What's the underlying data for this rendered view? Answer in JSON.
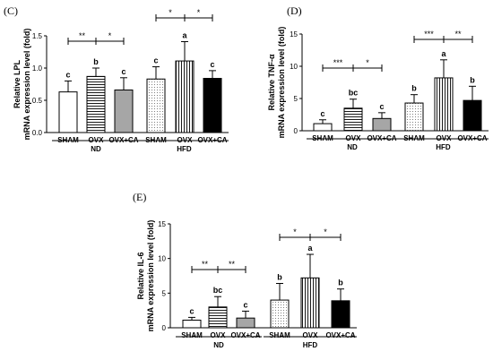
{
  "chart_data": [
    {
      "type": "bar",
      "panel": "(C)",
      "ylabel_lines": [
        "Relative LPL",
        "mRNA expression level (fold)"
      ],
      "ylim": [
        0,
        1.5
      ],
      "yticks": [
        "0.0",
        "0.5",
        "1.0",
        "1.5"
      ],
      "categories": [
        "SHAM",
        "OVX",
        "OVX+CA",
        "SHAM",
        "OVX",
        "OVX+CA"
      ],
      "groups": [
        {
          "label": "ND",
          "indices": [
            0,
            1,
            2
          ]
        },
        {
          "label": "HFD",
          "indices": [
            3,
            4,
            5
          ]
        }
      ],
      "values": [
        0.63,
        0.87,
        0.66,
        0.83,
        1.11,
        0.84
      ],
      "errors": [
        0.17,
        0.13,
        0.19,
        0.19,
        0.3,
        0.12
      ],
      "letters": [
        "c",
        "b",
        "c",
        "c",
        "a",
        "c"
      ],
      "fills": [
        "blank",
        "hstripes",
        "grey",
        "dots",
        "vstripes",
        "black"
      ],
      "significance": [
        {
          "from": 0,
          "to": 1,
          "label": "**"
        },
        {
          "from": 1,
          "to": 2,
          "label": "*"
        },
        {
          "from": 3,
          "to": 4,
          "label": "*"
        },
        {
          "from": 4,
          "to": 5,
          "label": "*"
        }
      ]
    },
    {
      "type": "bar",
      "panel": "(D)",
      "ylabel_lines": [
        "Relative TNF-α",
        "mRNA expression level (fold)"
      ],
      "ylim": [
        0,
        15
      ],
      "yticks": [
        "0",
        "5",
        "10",
        "15"
      ],
      "categories": [
        "SHAM",
        "OVX",
        "OVX+CA",
        "SHAM",
        "OVX",
        "OVX+CA"
      ],
      "groups": [
        {
          "label": "ND",
          "indices": [
            0,
            1,
            2
          ]
        },
        {
          "label": "HFD",
          "indices": [
            3,
            4,
            5
          ]
        }
      ],
      "values": [
        1.1,
        3.5,
        1.9,
        4.3,
        8.2,
        4.7
      ],
      "errors": [
        0.6,
        1.4,
        0.9,
        1.3,
        2.8,
        2.2
      ],
      "letters": [
        "c",
        "bc",
        "c",
        "b",
        "a",
        "b"
      ],
      "fills": [
        "blank",
        "hstripes",
        "grey",
        "dots",
        "vstripes",
        "black"
      ],
      "significance": [
        {
          "from": 0,
          "to": 1,
          "label": "***"
        },
        {
          "from": 1,
          "to": 2,
          "label": "*"
        },
        {
          "from": 3,
          "to": 4,
          "label": "***"
        },
        {
          "from": 4,
          "to": 5,
          "label": "**"
        }
      ]
    },
    {
      "type": "bar",
      "panel": "(E)",
      "ylabel_lines": [
        "Relative IL-6",
        "mRNA expression level (fold)"
      ],
      "ylim": [
        0,
        15
      ],
      "yticks": [
        "0",
        "5",
        "10",
        "15"
      ],
      "categories": [
        "SHAM",
        "OVX",
        "OVX+CA",
        "SHAM",
        "OVX",
        "OVX+CA"
      ],
      "groups": [
        {
          "label": "ND",
          "indices": [
            0,
            1,
            2
          ]
        },
        {
          "label": "HFD",
          "indices": [
            3,
            4,
            5
          ]
        }
      ],
      "values": [
        1.1,
        3.0,
        1.4,
        4.0,
        7.2,
        3.9
      ],
      "errors": [
        0.4,
        1.5,
        1.0,
        2.4,
        3.4,
        1.7
      ],
      "letters": [
        "c",
        "bc",
        "c",
        "b",
        "a",
        "b"
      ],
      "fills": [
        "blank",
        "hstripes",
        "grey",
        "dots",
        "vstripes",
        "black"
      ],
      "significance": [
        {
          "from": 0,
          "to": 1,
          "label": "**"
        },
        {
          "from": 1,
          "to": 2,
          "label": "**"
        },
        {
          "from": 3,
          "to": 4,
          "label": "*"
        },
        {
          "from": 4,
          "to": 5,
          "label": "*"
        }
      ]
    }
  ]
}
